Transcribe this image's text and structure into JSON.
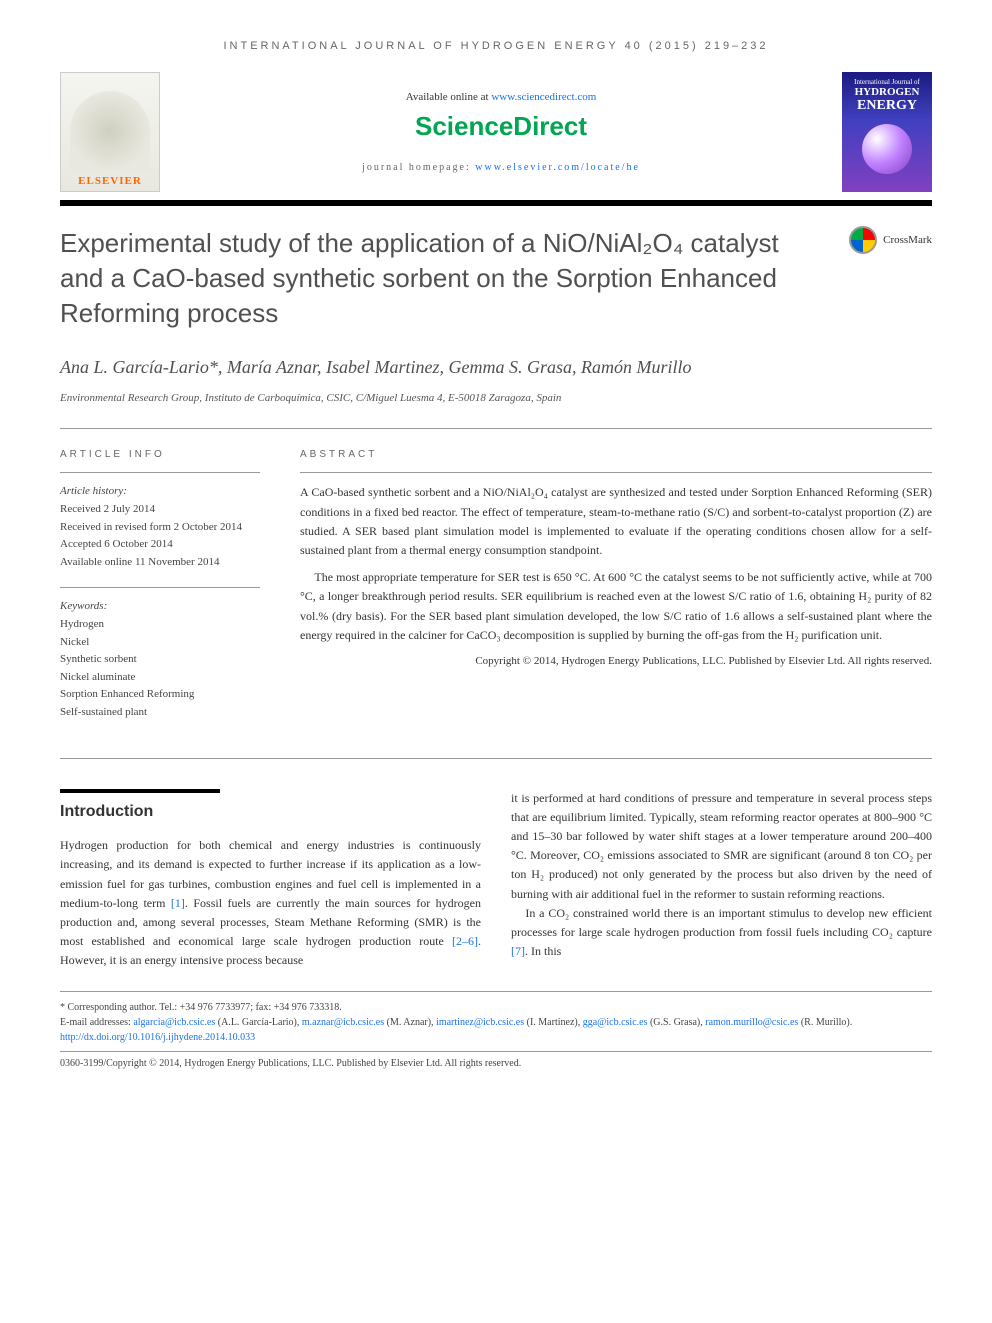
{
  "journal_header": "INTERNATIONAL JOURNAL OF HYDROGEN ENERGY 40 (2015) 219–232",
  "available_text": "Available online at ",
  "sd_url": "www.sciencedirect.com",
  "sciencedirect": "ScienceDirect",
  "journal_homepage_label": "journal homepage: ",
  "journal_homepage_url": "www.elsevier.com/locate/he",
  "elsevier_brand": "ELSEVIER",
  "cover": {
    "line1": "International Journal of",
    "line2": "HYDROGEN",
    "line3": "ENERGY"
  },
  "crossmark": "CrossMark",
  "title": "Experimental study of the application of a NiO/NiAl₂O₄ catalyst and a CaO-based synthetic sorbent on the Sorption Enhanced Reforming process",
  "authors": "Ana L. García-Lario*, María Aznar, Isabel Martinez, Gemma S. Grasa, Ramón Murillo",
  "affiliation": "Environmental Research Group, Instituto de Carboquímica, CSIC, C/Miguel Luesma 4, E-50018 Zaragoza, Spain",
  "article_info_heading": "ARTICLE INFO",
  "abstract_heading": "ABSTRACT",
  "history": {
    "label": "Article history:",
    "received": "Received 2 July 2014",
    "revised": "Received in revised form 2 October 2014",
    "accepted": "Accepted 6 October 2014",
    "online": "Available online 11 November 2014"
  },
  "keywords": {
    "label": "Keywords:",
    "items": [
      "Hydrogen",
      "Nickel",
      "Synthetic sorbent",
      "Nickel aluminate",
      "Sorption Enhanced Reforming",
      "Self-sustained plant"
    ]
  },
  "abstract": {
    "p1": "A CaO-based synthetic sorbent and a NiO/NiAl₂O₄ catalyst are synthesized and tested under Sorption Enhanced Reforming (SER) conditions in a fixed bed reactor. The effect of temperature, steam-to-methane ratio (S/C) and sorbent-to-catalyst proportion (Z) are studied. A SER based plant simulation model is implemented to evaluate if the operating conditions chosen allow for a self-sustained plant from a thermal energy consumption standpoint.",
    "p2": "The most appropriate temperature for SER test is 650 °C. At 600 °C the catalyst seems to be not sufficiently active, while at 700 °C, a longer breakthrough period results. SER equilibrium is reached even at the lowest S/C ratio of 1.6, obtaining H₂ purity of 82 vol.% (dry basis). For the SER based plant simulation developed, the low S/C ratio of 1.6 allows a self-sustained plant where the energy required in the calciner for CaCO₃ decomposition is supplied by burning the off-gas from the H₂ purification unit.",
    "copyright": "Copyright © 2014, Hydrogen Energy Publications, LLC. Published by Elsevier Ltd. All rights reserved."
  },
  "intro_heading": "Introduction",
  "body": {
    "col1_p1a": "Hydrogen production for both chemical and energy industries is continuously increasing, and its demand is expected to further increase if its application as a low-emission fuel for gas turbines, combustion engines and fuel cell is implemented in a medium-to-long term ",
    "ref1": "[1]",
    "col1_p1b": ". Fossil fuels are currently the main sources for hydrogen production and, among several processes, Steam Methane Reforming (SMR) is the most established and economical large scale hydrogen production route ",
    "ref2": "[2–6]",
    "col1_p1c": ". However, it is an energy intensive process because",
    "col2_p1": "it is performed at hard conditions of pressure and temperature in several process steps that are equilibrium limited. Typically, steam reforming reactor operates at 800–900 °C and 15–30 bar followed by water shift stages at a lower temperature around 200–400 °C. Moreover, CO₂ emissions associated to SMR are significant (around 8 ton CO₂ per ton H₂ produced) not only generated by the process but also driven by the need of burning with air additional fuel in the reformer to sustain reforming reactions.",
    "col2_p2a": "In a CO₂ constrained world there is an important stimulus to develop new efficient processes for large scale hydrogen production from fossil fuels including CO₂ capture ",
    "ref7": "[7]",
    "col2_p2b": ". In this"
  },
  "footer": {
    "corr": "* Corresponding author. Tel.: +34 976 7733977; fax: +34 976 733318.",
    "email_label": "E-mail addresses: ",
    "emails": [
      {
        "addr": "algarcia@icb.csic.es",
        "name": " (A.L. García-Lario), "
      },
      {
        "addr": "m.aznar@icb.csic.es",
        "name": " (M. Aznar), "
      },
      {
        "addr": "imartinez@icb.csic.es",
        "name": " (I. Martinez), "
      },
      {
        "addr": "gga@icb.csic.es",
        "name": " (G.S. Grasa), "
      },
      {
        "addr": "ramon.murillo@csic.es",
        "name": " (R. Murillo)."
      }
    ],
    "doi": "http://dx.doi.org/10.1016/j.ijhydene.2014.10.033",
    "copyright": "0360-3199/Copyright © 2014, Hydrogen Energy Publications, LLC. Published by Elsevier Ltd. All rights reserved."
  },
  "colors": {
    "link": "#1a73e8",
    "sd_green": "#00a651",
    "elsevier_orange": "#ff6600",
    "text": "#333333",
    "muted": "#666666"
  }
}
